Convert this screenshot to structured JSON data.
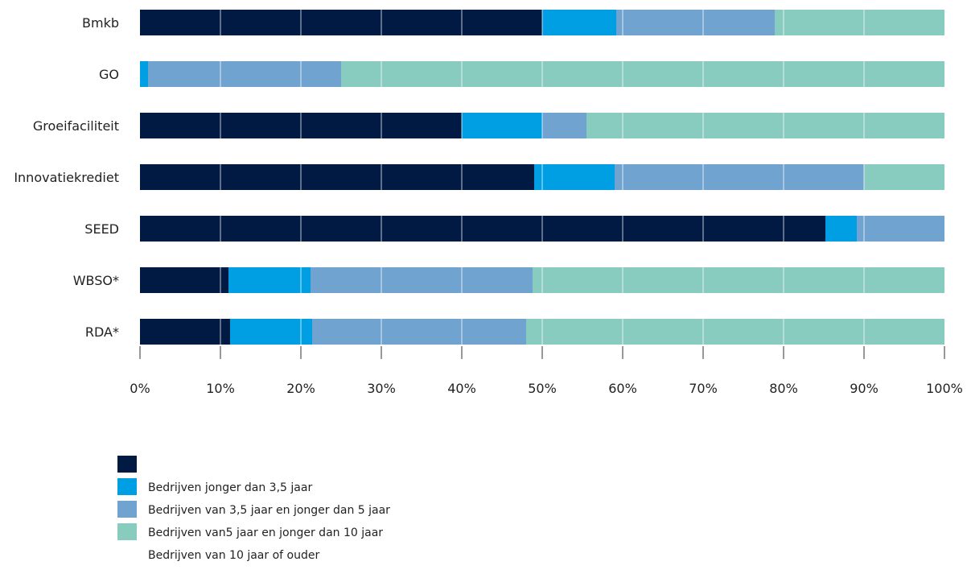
{
  "chart_data": {
    "type": "bar",
    "orientation": "horizontal",
    "stacked": true,
    "categories": [
      "Bmkb",
      "GO",
      "Groeifaciliteit",
      "Innovatiekrediet",
      "SEED",
      "WBSO*",
      "RDA*"
    ],
    "series": [
      {
        "name": "",
        "color": "#001a44",
        "values": [
          50,
          0,
          40,
          49,
          85.2,
          11,
          11.2
        ]
      },
      {
        "name": "Bedrijven jonger dan 3,5 jaar",
        "color": "#009fe3",
        "values": [
          9.2,
          1,
          10,
          10,
          3.9,
          10.2,
          10.2
        ]
      },
      {
        "name": "Bedrijven van 3,5 jaar en jonger dan 5 jaar",
        "color": "#71a3d0",
        "values": [
          19.7,
          24,
          5.5,
          31,
          10.9,
          27.6,
          26.6
        ]
      },
      {
        "name": "Bedrijven van5 jaar en jonger dan 10 jaar",
        "color": "#88cbbf",
        "values": [
          21.1,
          75,
          44.5,
          10,
          0,
          51.2,
          52
        ]
      },
      {
        "name": "Bedrijven van 10 jaar of ouder",
        "color": "#ffffff",
        "values": [
          0,
          0,
          0,
          0,
          0,
          0,
          0
        ]
      }
    ],
    "x_ticks": [
      "0%",
      "10%",
      "20%",
      "30%",
      "40%",
      "50%",
      "60%",
      "70%",
      "80%",
      "90%",
      "100%"
    ],
    "xlim": [
      0,
      100
    ],
    "grid": true,
    "legend_position": "bottom-left"
  }
}
